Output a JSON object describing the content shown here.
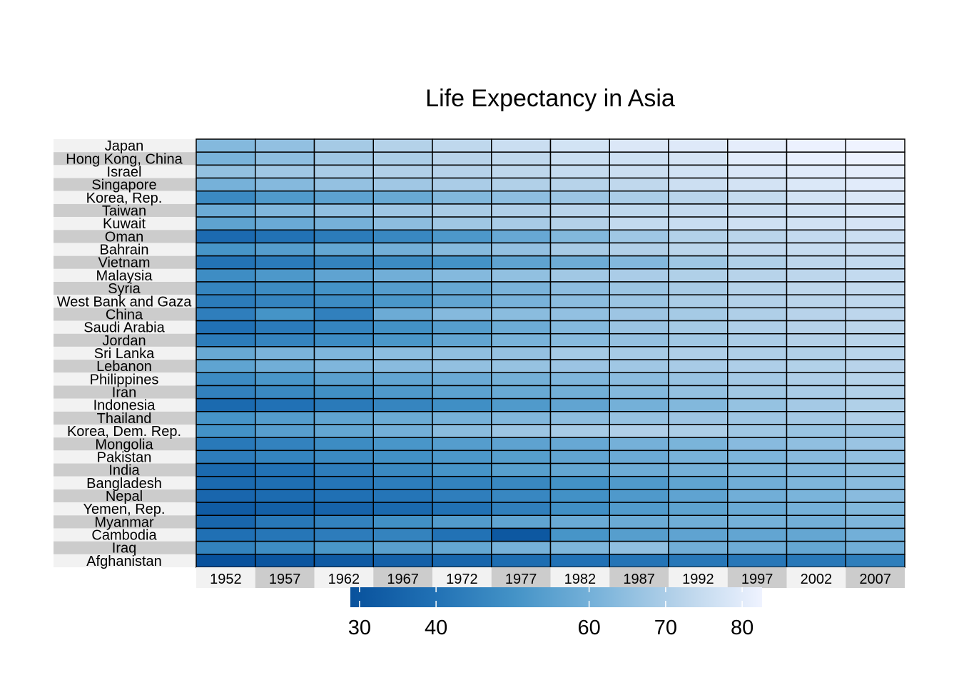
{
  "chart_data": {
    "type": "heatmap",
    "title": "Life Expectancy in Asia",
    "columns": [
      "1952",
      "1957",
      "1962",
      "1967",
      "1972",
      "1977",
      "1982",
      "1987",
      "1992",
      "1997",
      "2002",
      "2007"
    ],
    "rows": [
      "Japan",
      "Hong Kong, China",
      "Israel",
      "Singapore",
      "Korea, Rep.",
      "Taiwan",
      "Kuwait",
      "Oman",
      "Bahrain",
      "Vietnam",
      "Malaysia",
      "Syria",
      "West Bank and Gaza",
      "China",
      "Saudi Arabia",
      "Jordan",
      "Sri Lanka",
      "Lebanon",
      "Philippines",
      "Iran",
      "Indonesia",
      "Thailand",
      "Korea, Dem. Rep.",
      "Mongolia",
      "Pakistan",
      "India",
      "Bangladesh",
      "Nepal",
      "Yemen, Rep.",
      "Myanmar",
      "Cambodia",
      "Iraq",
      "Afghanistan"
    ],
    "values": [
      [
        63.0,
        65.5,
        68.7,
        71.4,
        73.4,
        75.4,
        77.1,
        78.7,
        79.4,
        80.7,
        82.0,
        82.6
      ],
      [
        61.0,
        64.8,
        67.7,
        70.0,
        72.0,
        73.6,
        75.5,
        76.2,
        77.6,
        80.0,
        81.5,
        82.2
      ],
      [
        65.4,
        67.8,
        69.4,
        70.8,
        71.6,
        73.1,
        74.5,
        75.6,
        76.9,
        78.3,
        79.7,
        80.7
      ],
      [
        60.4,
        63.2,
        65.8,
        67.9,
        69.5,
        70.8,
        71.8,
        73.6,
        75.8,
        77.2,
        78.8,
        80.0
      ],
      [
        47.5,
        52.7,
        55.3,
        57.7,
        62.6,
        64.8,
        67.1,
        69.8,
        72.2,
        74.6,
        77.0,
        78.6
      ],
      [
        58.5,
        62.4,
        65.2,
        67.5,
        69.4,
        70.6,
        72.2,
        73.4,
        74.3,
        75.3,
        76.9,
        78.4
      ],
      [
        55.6,
        58.0,
        60.5,
        64.6,
        67.7,
        69.3,
        71.3,
        74.2,
        75.2,
        76.2,
        76.9,
        77.6
      ],
      [
        37.6,
        40.1,
        43.2,
        47.0,
        52.1,
        57.4,
        62.7,
        67.7,
        71.2,
        72.5,
        74.2,
        75.6
      ],
      [
        50.9,
        53.8,
        56.9,
        59.9,
        63.3,
        65.6,
        69.1,
        70.8,
        72.6,
        73.9,
        74.8,
        75.6
      ],
      [
        40.4,
        42.9,
        45.4,
        47.8,
        50.3,
        55.8,
        58.8,
        62.8,
        67.7,
        70.7,
        73.0,
        74.2
      ],
      [
        48.5,
        52.1,
        55.7,
        59.4,
        63.0,
        65.3,
        68.0,
        69.5,
        70.7,
        71.9,
        73.0,
        74.2
      ],
      [
        45.9,
        48.3,
        50.3,
        53.7,
        57.3,
        61.2,
        64.6,
        67.0,
        69.2,
        71.5,
        73.1,
        74.1
      ],
      [
        43.2,
        45.7,
        48.1,
        51.6,
        56.5,
        60.8,
        64.4,
        67.0,
        69.7,
        71.1,
        72.4,
        73.4
      ],
      [
        44.0,
        50.5,
        44.5,
        58.4,
        63.1,
        64.0,
        65.5,
        67.3,
        68.7,
        70.4,
        72.0,
        73.0
      ],
      [
        40.0,
        42.9,
        45.9,
        49.9,
        53.9,
        58.7,
        63.0,
        66.8,
        68.8,
        70.5,
        71.6,
        72.8
      ],
      [
        43.2,
        45.7,
        48.1,
        51.6,
        56.5,
        61.1,
        63.7,
        65.9,
        68.0,
        69.8,
        71.3,
        72.5
      ],
      [
        57.6,
        61.5,
        62.2,
        64.3,
        65.0,
        65.9,
        68.8,
        69.0,
        70.4,
        70.5,
        70.8,
        72.4
      ],
      [
        55.9,
        59.5,
        62.1,
        63.9,
        65.4,
        66.1,
        66.9,
        67.9,
        69.3,
        70.3,
        71.0,
        72.0
      ],
      [
        47.8,
        51.3,
        54.8,
        56.4,
        58.1,
        60.1,
        62.1,
        64.2,
        66.5,
        68.6,
        70.3,
        71.7
      ],
      [
        44.9,
        47.2,
        49.3,
        52.5,
        55.2,
        57.7,
        59.6,
        63.0,
        65.7,
        68.0,
        69.5,
        71.0
      ],
      [
        37.5,
        39.9,
        42.5,
        46.0,
        49.2,
        52.7,
        56.2,
        60.1,
        62.7,
        66.0,
        68.6,
        70.7
      ],
      [
        50.8,
        53.6,
        56.1,
        58.3,
        60.4,
        62.5,
        64.6,
        66.1,
        67.3,
        67.5,
        68.6,
        70.6
      ],
      [
        50.1,
        54.1,
        56.7,
        59.9,
        64.0,
        67.2,
        69.1,
        70.6,
        70.0,
        67.7,
        66.7,
        67.3
      ],
      [
        42.2,
        45.2,
        48.3,
        51.3,
        53.8,
        55.5,
        57.5,
        60.2,
        61.3,
        63.6,
        65.0,
        66.8
      ],
      [
        43.4,
        45.6,
        47.7,
        49.8,
        51.9,
        54.0,
        56.2,
        58.2,
        60.8,
        61.8,
        63.6,
        65.5
      ],
      [
        37.4,
        40.2,
        43.6,
        47.2,
        50.7,
        54.2,
        56.6,
        58.6,
        60.2,
        61.8,
        62.9,
        64.7
      ],
      [
        37.5,
        39.3,
        41.2,
        43.5,
        45.3,
        46.9,
        50.0,
        52.8,
        56.0,
        59.4,
        62.0,
        64.1
      ],
      [
        36.2,
        37.7,
        39.4,
        41.2,
        43.9,
        46.7,
        49.6,
        52.5,
        55.7,
        59.4,
        61.3,
        63.8
      ],
      [
        32.5,
        33.9,
        35.2,
        36.98,
        39.8,
        44.2,
        49.1,
        52.9,
        55.6,
        58.0,
        60.3,
        62.7
      ],
      [
        36.3,
        41.9,
        45.1,
        49.4,
        53.1,
        56.1,
        58.1,
        58.3,
        59.3,
        60.3,
        59.9,
        62.1
      ],
      [
        39.4,
        41.4,
        43.4,
        45.4,
        40.3,
        31.2,
        51.0,
        53.9,
        55.8,
        56.5,
        56.8,
        59.7
      ],
      [
        45.3,
        48.4,
        51.5,
        54.5,
        56.9,
        60.4,
        62.0,
        65.0,
        59.5,
        58.8,
        57.0,
        59.5
      ],
      [
        28.8,
        30.3,
        32.0,
        34.0,
        36.1,
        38.4,
        39.9,
        40.8,
        41.7,
        41.8,
        42.1,
        43.8
      ]
    ],
    "colorbar": {
      "min": 28.8,
      "max": 82.6,
      "ticks": [
        30,
        40,
        60,
        70,
        80
      ],
      "low_color": "#08519c",
      "high_color": "#eff3ff"
    },
    "legend": "bottom",
    "grid": false
  }
}
